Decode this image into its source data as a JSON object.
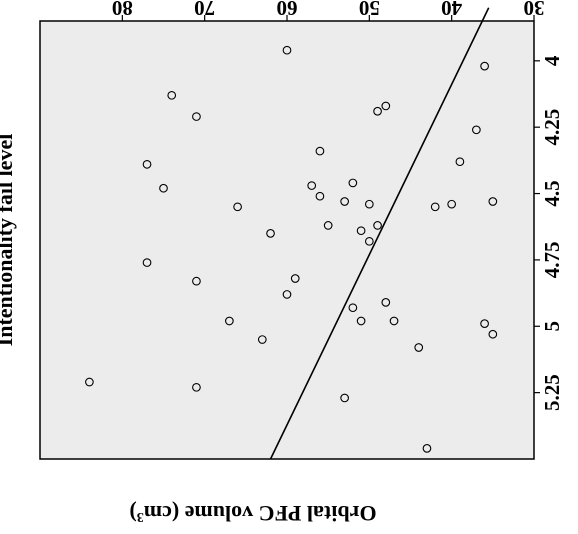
{
  "chart_data": {
    "type": "scatter",
    "orientation": "rotated 180 degrees",
    "title": "",
    "xlabel": "Orbital PFC volume (cm3)",
    "xlabel_unit_base": "Orbital PFC volume (cm",
    "xlabel_unit_exp": "3",
    "xlabel_close": ")",
    "ylabel": "Intentionality fail level",
    "xlim": [
      30,
      90
    ],
    "ylim": [
      3.85,
      5.5
    ],
    "x_ticks": [
      30,
      40,
      50,
      60,
      70,
      80
    ],
    "x_tick_labels": [
      "30",
      "40",
      "50",
      "60",
      "70",
      "80"
    ],
    "y_ticks": [
      4,
      4.25,
      4.5,
      4.75,
      5,
      5.25
    ],
    "y_tick_labels": [
      "4",
      "4.25",
      "4.5",
      "4.75",
      "5",
      "5.25"
    ],
    "grid": false,
    "legend": "none",
    "background": "#ececec",
    "fit_line": {
      "from": [
        35.5,
        3.8
      ],
      "to": [
        62,
        5.5
      ]
    },
    "points": [
      [
        43,
        5.46
      ],
      [
        53,
        5.27
      ],
      [
        71,
        5.23
      ],
      [
        84,
        5.21
      ],
      [
        44,
        5.08
      ],
      [
        63,
        5.05
      ],
      [
        35,
        5.03
      ],
      [
        36,
        4.99
      ],
      [
        47,
        4.98
      ],
      [
        51,
        4.98
      ],
      [
        67,
        4.98
      ],
      [
        52,
        4.93
      ],
      [
        48,
        4.91
      ],
      [
        60,
        4.88
      ],
      [
        59,
        4.82
      ],
      [
        71,
        4.83
      ],
      [
        77,
        4.76
      ],
      [
        50,
        4.68
      ],
      [
        62,
        4.65
      ],
      [
        51,
        4.64
      ],
      [
        49,
        4.62
      ],
      [
        55,
        4.62
      ],
      [
        66,
        4.55
      ],
      [
        35,
        4.53
      ],
      [
        40,
        4.54
      ],
      [
        42,
        4.55
      ],
      [
        50,
        4.54
      ],
      [
        53,
        4.53
      ],
      [
        56,
        4.51
      ],
      [
        57,
        4.47
      ],
      [
        75,
        4.48
      ],
      [
        52,
        4.46
      ],
      [
        77,
        4.39
      ],
      [
        39,
        4.38
      ],
      [
        56,
        4.34
      ],
      [
        37,
        4.26
      ],
      [
        71,
        4.21
      ],
      [
        74,
        4.13
      ],
      [
        49,
        4.19
      ],
      [
        48,
        4.17
      ],
      [
        36,
        4.02
      ],
      [
        60,
        3.96
      ]
    ]
  }
}
